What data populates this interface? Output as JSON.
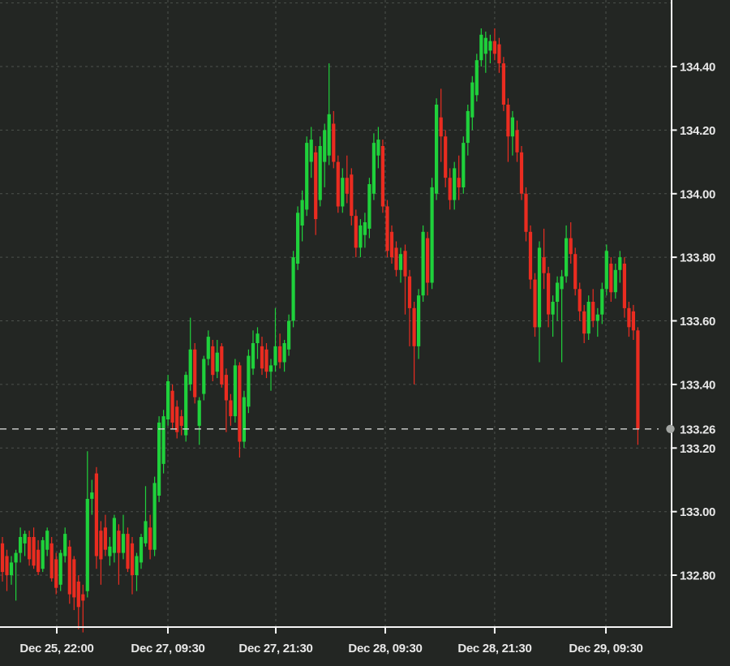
{
  "chart_data": {
    "type": "candlestick",
    "title": "",
    "legend": false,
    "grid": true,
    "current_price": {
      "value": 133.26,
      "label": "133.26"
    },
    "y_axis": {
      "side": "right",
      "range": [
        132.64,
        134.61
      ],
      "gridlines": [
        134.6,
        134.4,
        134.2,
        134.0,
        133.8,
        133.6,
        133.4,
        133.2,
        133.0,
        132.8
      ],
      "ticks": [
        {
          "value": 134.4,
          "label": "134.40"
        },
        {
          "value": 134.2,
          "label": "134.20"
        },
        {
          "value": 134.0,
          "label": "134.00"
        },
        {
          "value": 133.8,
          "label": "133.80"
        },
        {
          "value": 133.6,
          "label": "133.60"
        },
        {
          "value": 133.4,
          "label": "133.40"
        },
        {
          "value": 133.2,
          "label": "133.20"
        },
        {
          "value": 133.0,
          "label": "133.00"
        },
        {
          "value": 132.8,
          "label": "132.80"
        }
      ]
    },
    "x_axis": {
      "ticks": [
        {
          "label": "Dec 25, 22:00",
          "pos": 12.15
        },
        {
          "label": "Dec 27, 09:30",
          "pos": 36.98
        },
        {
          "label": "Dec 27, 21:30",
          "pos": 61.08
        },
        {
          "label": "Dec 28, 09:30",
          "pos": 85.55
        },
        {
          "label": "Dec 28, 21:30",
          "pos": 110.0
        },
        {
          "label": "Dec 29, 09:30",
          "pos": 134.85
        }
      ]
    },
    "colors": {
      "up": "#1fd13b",
      "down": "#ea2c20",
      "background": "#232623",
      "grid": "#4c514c",
      "axis": "#f5f5f5",
      "tick_label": "#e8e8e8",
      "price_line": "#d2d4d2",
      "price_marker": "#a3a6a3"
    },
    "candles": {
      "format": [
        "open",
        "high",
        "low",
        "close"
      ],
      "ohlc": [
        [
          132.9,
          132.92,
          132.78,
          132.81
        ],
        [
          132.86,
          132.88,
          132.75,
          132.8
        ],
        [
          132.8,
          132.86,
          132.77,
          132.84
        ],
        [
          132.84,
          132.88,
          132.72,
          132.87
        ],
        [
          132.87,
          132.95,
          132.84,
          132.92
        ],
        [
          132.9,
          132.94,
          132.86,
          132.93
        ],
        [
          132.92,
          132.94,
          132.83,
          132.85
        ],
        [
          132.92,
          132.95,
          132.82,
          132.83
        ],
        [
          132.88,
          132.91,
          132.8,
          132.81
        ],
        [
          132.82,
          132.92,
          132.81,
          132.91
        ],
        [
          132.88,
          132.95,
          132.86,
          132.94
        ],
        [
          132.9,
          132.92,
          132.78,
          132.79
        ],
        [
          132.85,
          132.87,
          132.74,
          132.76
        ],
        [
          132.77,
          132.88,
          132.75,
          132.87
        ],
        [
          132.86,
          132.95,
          132.84,
          132.93
        ],
        [
          132.89,
          132.91,
          132.71,
          132.74
        ],
        [
          132.85,
          132.86,
          132.69,
          132.73
        ],
        [
          132.78,
          132.8,
          132.63,
          132.7
        ],
        [
          132.74,
          132.77,
          132.62,
          132.72
        ],
        [
          132.75,
          133.19,
          132.73,
          133.04
        ],
        [
          133.04,
          133.1,
          132.99,
          133.06
        ],
        [
          133.12,
          133.14,
          132.82,
          132.86
        ],
        [
          132.94,
          132.97,
          132.77,
          132.85
        ],
        [
          132.95,
          132.99,
          132.86,
          132.88
        ],
        [
          132.86,
          132.92,
          132.83,
          132.89
        ],
        [
          132.87,
          132.99,
          132.84,
          132.98
        ],
        [
          132.94,
          132.96,
          132.77,
          132.87
        ],
        [
          132.87,
          132.99,
          132.85,
          132.93
        ],
        [
          132.93,
          132.95,
          132.81,
          132.82
        ],
        [
          132.9,
          132.92,
          132.74,
          132.8
        ],
        [
          132.8,
          132.87,
          132.75,
          132.86
        ],
        [
          132.84,
          132.93,
          132.82,
          132.92
        ],
        [
          132.9,
          133.08,
          132.89,
          132.97
        ],
        [
          132.95,
          132.99,
          132.85,
          132.88
        ],
        [
          132.88,
          133.11,
          132.86,
          133.09
        ],
        [
          133.05,
          133.3,
          133.03,
          133.28
        ],
        [
          133.15,
          133.32,
          133.12,
          133.3
        ],
        [
          133.29,
          133.43,
          133.27,
          133.41
        ],
        [
          133.38,
          133.4,
          133.26,
          133.28
        ],
        [
          133.33,
          133.35,
          133.23,
          133.25
        ],
        [
          133.3,
          133.32,
          133.24,
          133.27
        ],
        [
          133.24,
          133.44,
          133.22,
          133.43
        ],
        [
          133.4,
          133.61,
          133.38,
          133.51
        ],
        [
          133.51,
          133.53,
          133.34,
          133.36
        ],
        [
          133.27,
          133.36,
          133.21,
          133.35
        ],
        [
          133.37,
          133.49,
          133.35,
          133.48
        ],
        [
          133.48,
          133.57,
          133.46,
          133.55
        ],
        [
          133.52,
          133.54,
          133.41,
          133.43
        ],
        [
          133.44,
          133.54,
          133.42,
          133.5
        ],
        [
          133.52,
          133.53,
          133.39,
          133.4
        ],
        [
          133.43,
          133.45,
          133.25,
          133.35
        ],
        [
          133.35,
          133.37,
          133.27,
          133.3
        ],
        [
          133.3,
          133.48,
          133.28,
          133.46
        ],
        [
          133.46,
          133.47,
          133.17,
          133.22
        ],
        [
          133.22,
          133.38,
          133.2,
          133.36
        ],
        [
          133.33,
          133.51,
          133.31,
          133.49
        ],
        [
          133.45,
          133.57,
          133.43,
          133.53
        ],
        [
          133.53,
          133.58,
          133.48,
          133.56
        ],
        [
          133.52,
          133.55,
          133.43,
          133.45
        ],
        [
          133.51,
          133.53,
          133.42,
          133.44
        ],
        [
          133.44,
          133.48,
          133.38,
          133.46
        ],
        [
          133.46,
          133.64,
          133.44,
          133.52
        ],
        [
          133.52,
          133.56,
          133.45,
          133.47
        ],
        [
          133.47,
          133.54,
          133.44,
          133.53
        ],
        [
          133.51,
          133.62,
          133.49,
          133.6
        ],
        [
          133.6,
          133.82,
          133.58,
          133.8
        ],
        [
          133.78,
          133.96,
          133.76,
          133.94
        ],
        [
          133.9,
          134.01,
          133.85,
          133.98
        ],
        [
          133.95,
          134.18,
          133.93,
          134.16
        ],
        [
          134.1,
          134.21,
          134.05,
          134.17
        ],
        [
          134.13,
          134.15,
          133.87,
          133.92
        ],
        [
          133.98,
          134.18,
          133.96,
          134.15
        ],
        [
          134.1,
          134.22,
          134.02,
          134.2
        ],
        [
          134.12,
          134.41,
          134.09,
          134.25
        ],
        [
          134.22,
          134.26,
          134.08,
          134.1
        ],
        [
          134.1,
          134.12,
          133.94,
          133.96
        ],
        [
          133.96,
          134.08,
          133.94,
          134.05
        ],
        [
          134.05,
          134.12,
          133.97,
          134.0
        ],
        [
          134.06,
          134.08,
          133.9,
          133.93
        ],
        [
          133.93,
          133.95,
          133.8,
          133.83
        ],
        [
          133.83,
          133.92,
          133.8,
          133.9
        ],
        [
          133.87,
          133.94,
          133.83,
          133.91
        ],
        [
          133.89,
          134.05,
          133.86,
          134.03
        ],
        [
          134.0,
          134.19,
          133.98,
          134.16
        ],
        [
          134.12,
          134.21,
          134.08,
          134.17
        ],
        [
          134.15,
          134.17,
          133.94,
          133.96
        ],
        [
          133.96,
          133.98,
          133.8,
          133.82
        ],
        [
          133.88,
          133.9,
          133.78,
          133.8
        ],
        [
          133.83,
          133.85,
          133.74,
          133.76
        ],
        [
          133.76,
          133.83,
          133.72,
          133.81
        ],
        [
          133.82,
          133.84,
          133.62,
          133.74
        ],
        [
          133.74,
          133.76,
          133.52,
          133.64
        ],
        [
          133.64,
          133.66,
          133.4,
          133.52
        ],
        [
          133.52,
          133.7,
          133.48,
          133.68
        ],
        [
          133.68,
          133.9,
          133.66,
          133.88
        ],
        [
          133.86,
          133.88,
          133.68,
          133.72
        ],
        [
          133.72,
          134.05,
          133.7,
          134.02
        ],
        [
          134.0,
          134.3,
          133.98,
          134.28
        ],
        [
          134.24,
          134.33,
          134.1,
          134.18
        ],
        [
          134.18,
          134.2,
          134.02,
          134.05
        ],
        [
          134.05,
          134.08,
          133.95,
          133.98
        ],
        [
          133.98,
          134.1,
          133.95,
          134.08
        ],
        [
          134.05,
          134.12,
          133.98,
          134.02
        ],
        [
          134.02,
          134.18,
          134.0,
          134.16
        ],
        [
          134.16,
          134.28,
          134.12,
          134.26
        ],
        [
          134.24,
          134.37,
          134.2,
          134.35
        ],
        [
          134.31,
          134.44,
          134.29,
          134.42
        ],
        [
          134.42,
          134.52,
          134.4,
          134.5
        ],
        [
          134.44,
          134.51,
          134.38,
          134.49
        ],
        [
          134.45,
          134.5,
          134.41,
          134.48
        ],
        [
          134.48,
          134.52,
          134.42,
          134.44
        ],
        [
          134.47,
          134.49,
          134.38,
          134.41
        ],
        [
          134.41,
          134.43,
          134.26,
          134.28
        ],
        [
          134.28,
          134.3,
          134.1,
          134.18
        ],
        [
          134.18,
          134.26,
          134.12,
          134.24
        ],
        [
          134.2,
          134.23,
          134.1,
          134.13
        ],
        [
          134.13,
          134.15,
          133.98,
          134.0
        ],
        [
          134.0,
          134.02,
          133.85,
          133.88
        ],
        [
          133.88,
          133.9,
          133.7,
          133.73
        ],
        [
          133.73,
          133.75,
          133.55,
          133.58
        ],
        [
          133.58,
          133.85,
          133.47,
          133.83
        ],
        [
          133.8,
          133.89,
          133.7,
          133.75
        ],
        [
          133.75,
          133.77,
          133.58,
          133.62
        ],
        [
          133.62,
          133.68,
          133.55,
          133.66
        ],
        [
          133.66,
          133.74,
          133.6,
          133.72
        ],
        [
          133.7,
          133.76,
          133.47,
          133.74
        ],
        [
          133.74,
          133.9,
          133.72,
          133.86
        ],
        [
          133.86,
          133.91,
          133.78,
          133.81
        ],
        [
          133.81,
          133.83,
          133.68,
          133.7
        ],
        [
          133.7,
          133.72,
          133.6,
          133.63
        ],
        [
          133.63,
          133.65,
          133.53,
          133.56
        ],
        [
          133.56,
          133.68,
          133.54,
          133.66
        ],
        [
          133.66,
          133.7,
          133.58,
          133.6
        ],
        [
          133.6,
          133.64,
          133.55,
          133.62
        ],
        [
          133.62,
          133.72,
          133.59,
          133.7
        ],
        [
          133.7,
          133.84,
          133.68,
          133.82
        ],
        [
          133.78,
          133.8,
          133.66,
          133.69
        ],
        [
          133.69,
          133.78,
          133.67,
          133.76
        ],
        [
          133.76,
          133.82,
          133.72,
          133.8
        ],
        [
          133.78,
          133.8,
          133.61,
          133.64
        ],
        [
          133.64,
          133.66,
          133.55,
          133.58
        ],
        [
          133.63,
          133.65,
          133.54,
          133.57
        ],
        [
          133.57,
          133.58,
          133.21,
          133.26
        ]
      ]
    }
  }
}
